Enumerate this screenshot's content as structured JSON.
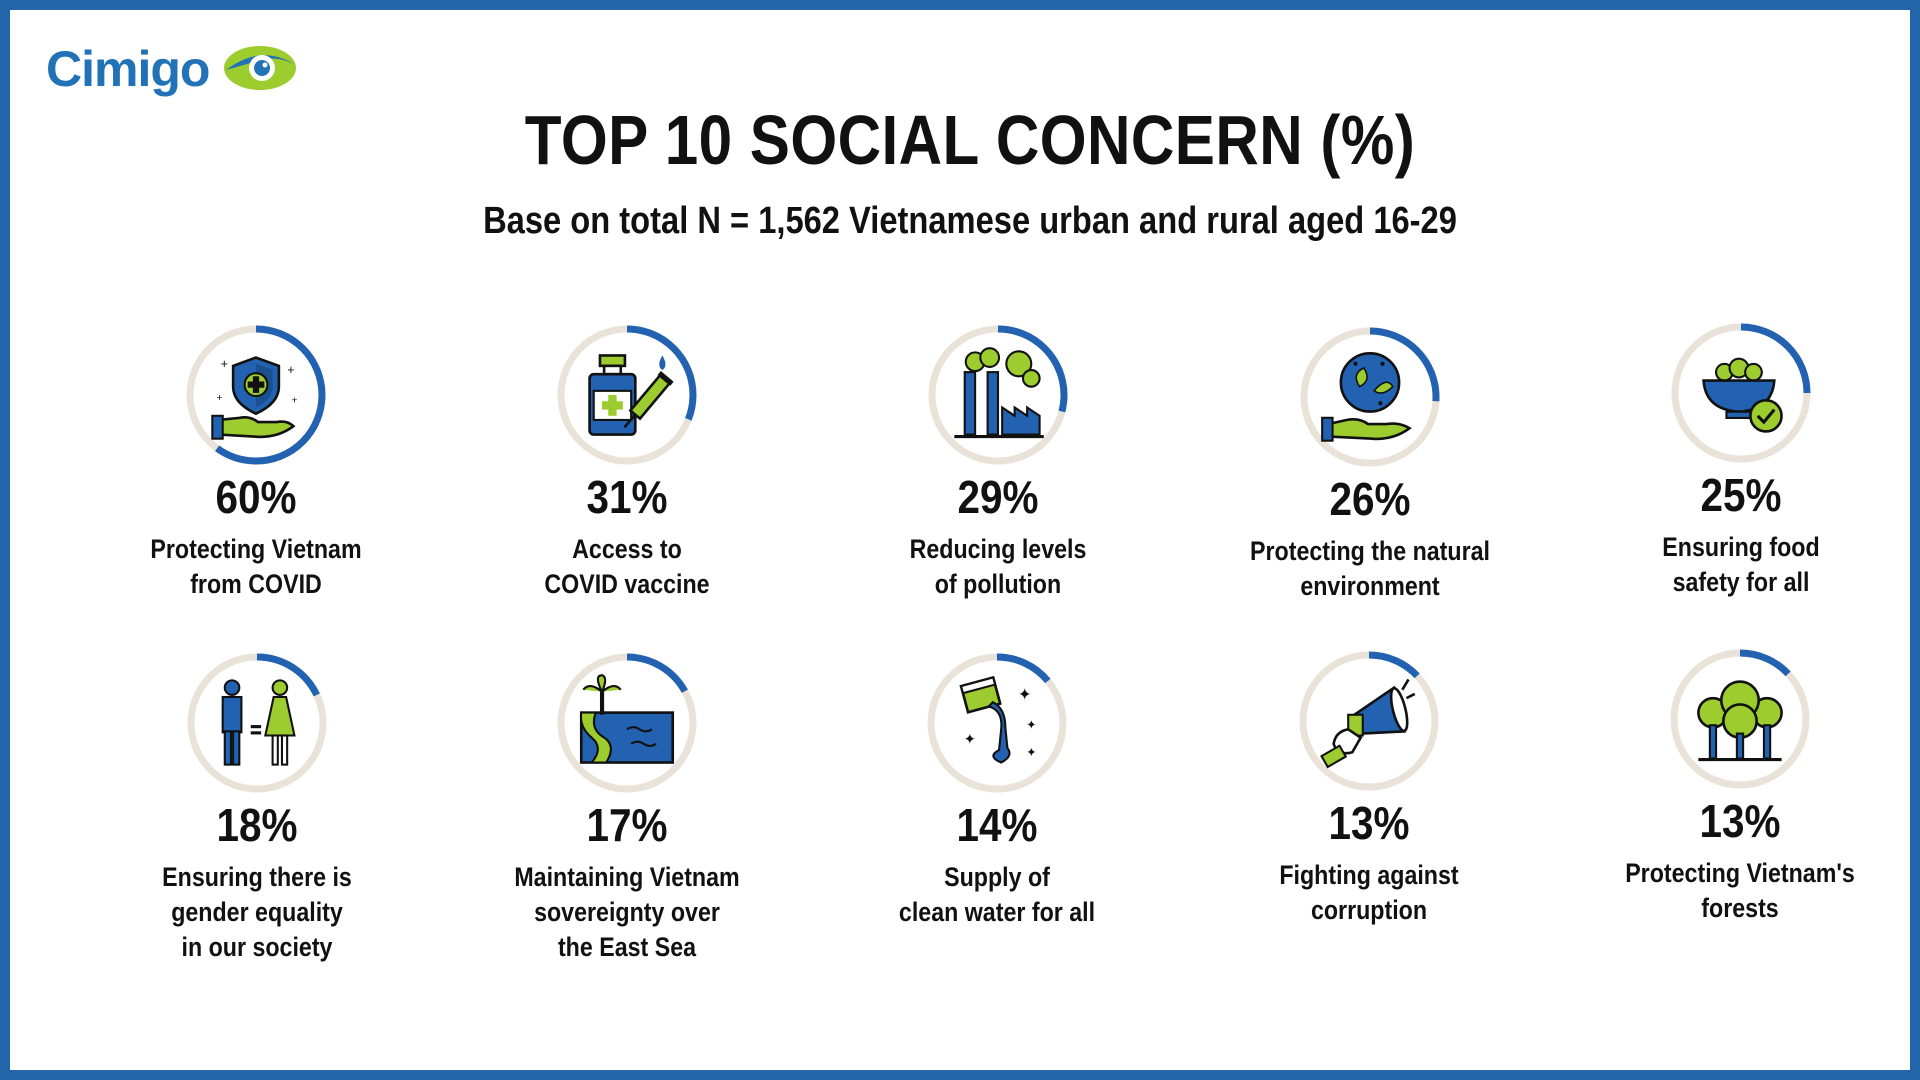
{
  "brand": {
    "name": "Cimigo"
  },
  "chart_data": {
    "type": "donut-grid",
    "title": "TOP 10 SOCIAL CONCERN (%)",
    "subtitle": "Base on total N = 1,562 Vietnamese urban and rural aged 16-29",
    "ring_color": "#2262b0",
    "track_color": "#e9e2d8",
    "items": [
      {
        "label": "Protecting Vietnam\nfrom COVID",
        "value": 60,
        "value_label": "60%",
        "icon": "shield-hand-icon"
      },
      {
        "label": "Access to\nCOVID vaccine",
        "value": 31,
        "value_label": "31%",
        "icon": "vaccine-icon"
      },
      {
        "label": "Reducing levels\nof pollution",
        "value": 29,
        "value_label": "29%",
        "icon": "factory-pollution-icon"
      },
      {
        "label": "Protecting the natural\nenvironment",
        "value": 26,
        "value_label": "26%",
        "icon": "earth-hand-icon"
      },
      {
        "label": "Ensuring food\nsafety for all",
        "value": 25,
        "value_label": "25%",
        "icon": "food-bowl-icon"
      },
      {
        "label": "Ensuring there is\ngender equality\nin our society",
        "value": 18,
        "value_label": "18%",
        "icon": "gender-equality-icon"
      },
      {
        "label": "Maintaining Vietnam\nsovereignty over\nthe East Sea",
        "value": 17,
        "value_label": "17%",
        "icon": "island-sea-icon"
      },
      {
        "label": "Supply of\nclean water for all",
        "value": 14,
        "value_label": "14%",
        "icon": "clean-water-icon"
      },
      {
        "label": "Fighting against\ncorruption",
        "value": 13,
        "value_label": "13%",
        "icon": "megaphone-fist-icon"
      },
      {
        "label": "Protecting Vietnam's\nforests",
        "value": 13,
        "value_label": "13%",
        "icon": "trees-icon"
      }
    ]
  }
}
